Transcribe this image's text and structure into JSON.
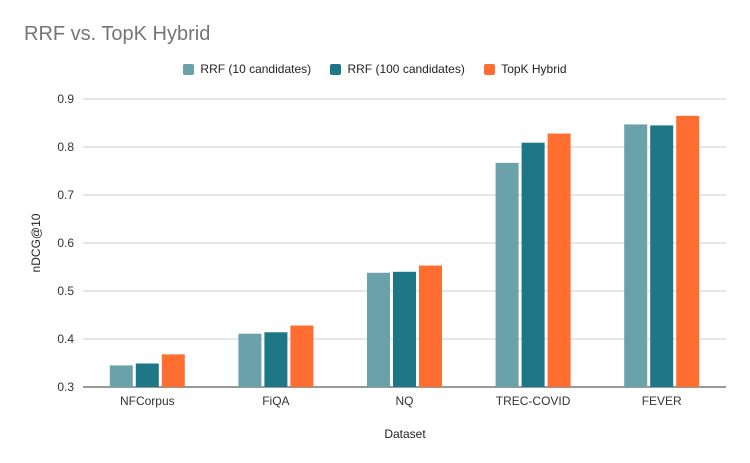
{
  "chart_data": {
    "type": "bar",
    "title": "RRF vs. TopK Hybrid",
    "xlabel": "Dataset",
    "ylabel": "nDCG@10",
    "ylim": [
      0.3,
      0.9
    ],
    "yticks": [
      "0.3",
      "0.4",
      "0.5",
      "0.6",
      "0.7",
      "0.8",
      "0.9"
    ],
    "grid": true,
    "legend_position": "top",
    "categories": [
      "NFCorpus",
      "FiQA",
      "NQ",
      "TREC-COVID",
      "FEVER"
    ],
    "series": [
      {
        "name": "RRF (10 candidates)",
        "color": "#6aa1ab",
        "values": [
          0.345,
          0.411,
          0.538,
          0.767,
          0.847
        ]
      },
      {
        "name": "RRF (100 candidates)",
        "color": "#1e7787",
        "values": [
          0.349,
          0.414,
          0.54,
          0.809,
          0.845
        ]
      },
      {
        "name": "TopK Hybrid",
        "color": "#ff6d31",
        "values": [
          0.368,
          0.428,
          0.553,
          0.828,
          0.865
        ]
      }
    ]
  }
}
